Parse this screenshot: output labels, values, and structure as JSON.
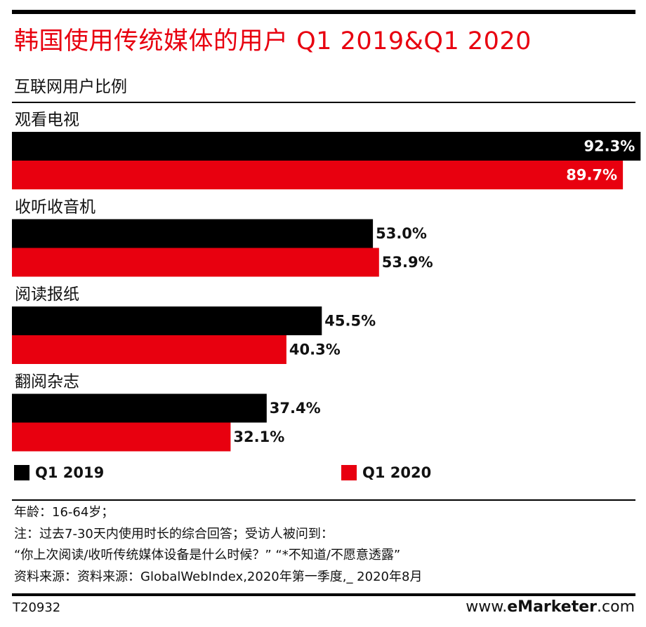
{
  "title": "韩国使用传统媒体的用户 Q1 2019&Q1 2020",
  "subtitle": "互联网用户比例",
  "chart_data": {
    "type": "bar",
    "orientation": "horizontal",
    "title": "韩国使用传统媒体的用户 Q1 2019&Q1 2020",
    "ylabel": "互联网用户比例",
    "xlim": [
      0,
      100
    ],
    "categories": [
      "观看电视",
      "收听收音机",
      "阅读报纸",
      "翻阅杂志"
    ],
    "series": [
      {
        "name": "Q1 2019",
        "color": "#000000",
        "values": [
          92.3,
          53.0,
          45.5,
          37.4
        ],
        "labels": [
          "92.3%",
          "53.0%",
          "45.5%",
          "37.4%"
        ]
      },
      {
        "name": "Q1 2020",
        "color": "#e8000f",
        "values": [
          89.7,
          53.9,
          40.3,
          32.1
        ],
        "labels": [
          "89.7%",
          "53.9%",
          "40.3%",
          "32.1%"
        ]
      }
    ]
  },
  "legend": [
    {
      "label": "Q1 2019",
      "color": "#000000"
    },
    {
      "label": "Q1 2020",
      "color": "#e8000f"
    }
  ],
  "notes": {
    "line1": "年龄：16-64岁；",
    "line2": "注：过去7-30天内使用时长的综合回答；受访人被问到：",
    "line3": "“你上次阅读/收听传统媒体设备是什么时候？”  “*不知道/不愿意透露”",
    "line4": "资料来源：资料来源：GlobalWebIndex,2020年第一季度,_ 2020年8月"
  },
  "footer": {
    "code": "T20932",
    "brand_prefix": "www.",
    "brand_e": "e",
    "brand_name": "Marketer",
    "brand_suffix": ".com"
  }
}
